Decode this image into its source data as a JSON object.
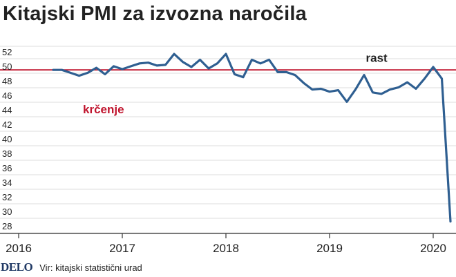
{
  "title": "Kitajski PMI za izvozna naročila",
  "footer": {
    "logo": "DELO",
    "source": "Vir: kitajski statistični urad"
  },
  "colors": {
    "line": "#2f5f91",
    "reference": "#c0142d",
    "reference_label": "#c0142d",
    "grid": "#dddddd",
    "text": "#222222"
  },
  "chart_data": {
    "type": "line",
    "title": "Kitajski PMI za izvozna naročila",
    "xlabel": "",
    "ylabel": "",
    "x_range": [
      2016,
      2020.25
    ],
    "ylim": [
      27,
      53
    ],
    "y_ticks": [
      28,
      30,
      32,
      34,
      36,
      38,
      40,
      42,
      44,
      46,
      48,
      50,
      52
    ],
    "x_ticks": [
      2016,
      2017,
      2018,
      2019,
      2020
    ],
    "x_tick_labels": [
      "2016",
      "2017",
      "2018",
      "2019",
      "2020"
    ],
    "reference_line": {
      "value": 49.6
    },
    "annotations": [
      {
        "text": "rast",
        "x": 2019.35,
        "y": 51.2
      },
      {
        "text": "krčenje",
        "x": 2016.62,
        "y": 44.1
      }
    ],
    "series": [
      {
        "name": "PMI za izvozna naročila",
        "points": [
          [
            2016.333,
            49.6
          ],
          [
            2016.417,
            49.6
          ],
          [
            2016.5,
            49.2
          ],
          [
            2016.583,
            48.8
          ],
          [
            2016.667,
            49.2
          ],
          [
            2016.75,
            49.9
          ],
          [
            2016.833,
            49.0
          ],
          [
            2016.917,
            50.1
          ],
          [
            2017.0,
            49.7
          ],
          [
            2017.083,
            50.1
          ],
          [
            2017.167,
            50.5
          ],
          [
            2017.25,
            50.6
          ],
          [
            2017.333,
            50.2
          ],
          [
            2017.417,
            50.3
          ],
          [
            2017.5,
            51.8
          ],
          [
            2017.583,
            50.7
          ],
          [
            2017.667,
            50.0
          ],
          [
            2017.75,
            51.0
          ],
          [
            2017.833,
            49.8
          ],
          [
            2017.917,
            50.5
          ],
          [
            2018.0,
            51.8
          ],
          [
            2018.083,
            49.0
          ],
          [
            2018.167,
            48.6
          ],
          [
            2018.25,
            51.0
          ],
          [
            2018.333,
            50.5
          ],
          [
            2018.417,
            51.0
          ],
          [
            2018.5,
            49.3
          ],
          [
            2018.583,
            49.3
          ],
          [
            2018.667,
            48.9
          ],
          [
            2018.75,
            47.8
          ],
          [
            2018.833,
            46.9
          ],
          [
            2018.917,
            47.0
          ],
          [
            2019.0,
            46.6
          ],
          [
            2019.083,
            46.8
          ],
          [
            2019.167,
            45.2
          ],
          [
            2019.25,
            46.9
          ],
          [
            2019.333,
            48.9
          ],
          [
            2019.417,
            46.5
          ],
          [
            2019.5,
            46.3
          ],
          [
            2019.583,
            46.9
          ],
          [
            2019.667,
            47.2
          ],
          [
            2019.75,
            47.9
          ],
          [
            2019.833,
            47.0
          ],
          [
            2019.917,
            48.4
          ],
          [
            2020.0,
            50.0
          ],
          [
            2020.083,
            48.4
          ],
          [
            2020.167,
            28.7
          ]
        ]
      }
    ]
  }
}
